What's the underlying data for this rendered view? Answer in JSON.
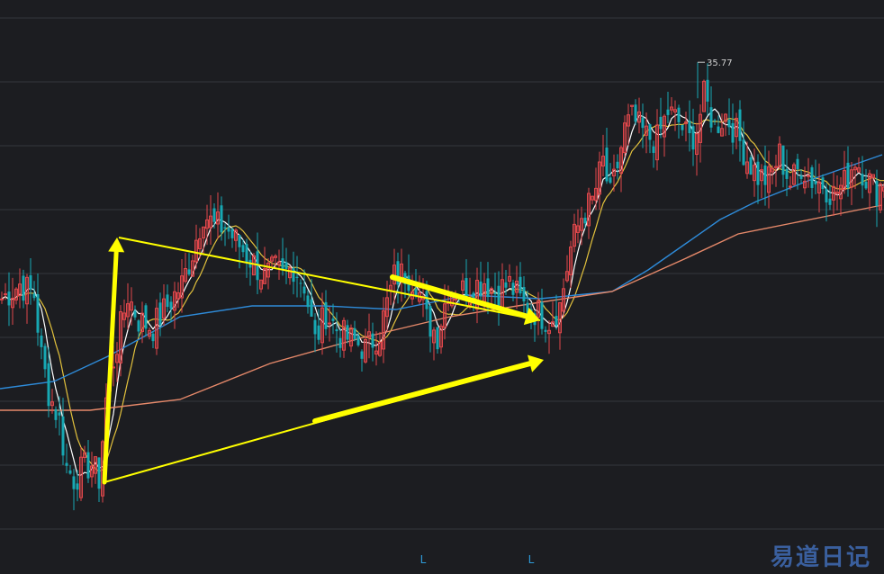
{
  "watermark": "易道日记",
  "chart_data": {
    "type": "candlestick",
    "ylim": [
      22,
      37
    ],
    "grid": true,
    "annotations": {
      "high_label": "35.77",
      "bottom_markers": [
        "L",
        "L"
      ]
    },
    "colors": {
      "up": "#e0474b",
      "down": "#17a8b3",
      "ma5": "#ffffff",
      "ma10": "#e3c23d",
      "ma60": "#2e8bd9",
      "ma120": "#e6896a",
      "pattern": "#ffff00",
      "grid": "#33363d"
    },
    "x": [
      0,
      4,
      8,
      12,
      16,
      20,
      24,
      28,
      32,
      36,
      40,
      44,
      48,
      52,
      56,
      60,
      64,
      68,
      72,
      76,
      80,
      84,
      88,
      92,
      96,
      100,
      104,
      108,
      112,
      116,
      120,
      124,
      128,
      132,
      136,
      140,
      144,
      148,
      152,
      156,
      160,
      164,
      168,
      172,
      176,
      180,
      184,
      188,
      192,
      196,
      200,
      204,
      208,
      212,
      216,
      220,
      224,
      228,
      232,
      236,
      240,
      244,
      248,
      252,
      256,
      260,
      264,
      268,
      272,
      276,
      280,
      284,
      288,
      292,
      296,
      300,
      304,
      308,
      312,
      316,
      320,
      324,
      328,
      332,
      336,
      340,
      344,
      348,
      352,
      356,
      360,
      364,
      368,
      372,
      376,
      380,
      384,
      388,
      392,
      396,
      400,
      404,
      408,
      412,
      416,
      420,
      424,
      428,
      432,
      436,
      440,
      444,
      448,
      452,
      456,
      460,
      464,
      468,
      472,
      476,
      480,
      484,
      488,
      492,
      496,
      500,
      504,
      508,
      512,
      516,
      520,
      524,
      528,
      532,
      536,
      540,
      544,
      548,
      552,
      556,
      560,
      564,
      568,
      572,
      576,
      580,
      584,
      588,
      592,
      596,
      600,
      604,
      608,
      612,
      616,
      620,
      624,
      628,
      632,
      636,
      640,
      644,
      648,
      652,
      656,
      660,
      664,
      668,
      672,
      676,
      680,
      684,
      688,
      692,
      696,
      700,
      704,
      708,
      712,
      716,
      720,
      724,
      728,
      732,
      736,
      740,
      744,
      748,
      752,
      756,
      760,
      764,
      768,
      772,
      776,
      780,
      784,
      788,
      792,
      796,
      800,
      804,
      808,
      812,
      816,
      820,
      824,
      828,
      832,
      836,
      840,
      844,
      848,
      852,
      856,
      860,
      864,
      868,
      872,
      876,
      880,
      884,
      888,
      892,
      896,
      900,
      904,
      908,
      912,
      916,
      920,
      924,
      928,
      932,
      936,
      940,
      944,
      948,
      952,
      956,
      960,
      964,
      968,
      972,
      976,
      980
    ],
    "anchors": [
      [
        0,
        29.2
      ],
      [
        20,
        29.6
      ],
      [
        36,
        29.3
      ],
      [
        44,
        27.6
      ],
      [
        52,
        26.6
      ],
      [
        64,
        25.8
      ],
      [
        72,
        24.5
      ],
      [
        80,
        24.2
      ],
      [
        92,
        24.5
      ],
      [
        100,
        24.6
      ],
      [
        108,
        24.2
      ],
      [
        116,
        26.4
      ],
      [
        124,
        27.5
      ],
      [
        140,
        29.3
      ],
      [
        152,
        28.6
      ],
      [
        168,
        28.4
      ],
      [
        184,
        29.0
      ],
      [
        200,
        29.6
      ],
      [
        212,
        30.5
      ],
      [
        224,
        31.6
      ],
      [
        236,
        31.2
      ],
      [
        248,
        31.2
      ],
      [
        260,
        30.8
      ],
      [
        276,
        30.3
      ],
      [
        292,
        29.8
      ],
      [
        304,
        30.0
      ],
      [
        312,
        29.8
      ],
      [
        324,
        30.1
      ],
      [
        336,
        29.6
      ],
      [
        348,
        28.0
      ],
      [
        360,
        28.8
      ],
      [
        376,
        28.2
      ],
      [
        392,
        28.0
      ],
      [
        404,
        27.8
      ],
      [
        420,
        28.3
      ],
      [
        436,
        29.8
      ],
      [
        448,
        29.9
      ],
      [
        460,
        29.7
      ],
      [
        472,
        28.6
      ],
      [
        484,
        28.2
      ],
      [
        496,
        29.5
      ],
      [
        508,
        29.4
      ],
      [
        520,
        29.5
      ],
      [
        536,
        29.7
      ],
      [
        548,
        29.4
      ],
      [
        564,
        29.6
      ],
      [
        580,
        29.0
      ],
      [
        596,
        28.8
      ],
      [
        608,
        28.6
      ],
      [
        620,
        29.0
      ],
      [
        632,
        30.6
      ],
      [
        644,
        31.5
      ],
      [
        656,
        31.9
      ],
      [
        668,
        33.0
      ],
      [
        676,
        32.0
      ],
      [
        684,
        32.9
      ],
      [
        692,
        33.9
      ],
      [
        700,
        34.2
      ],
      [
        716,
        33.7
      ],
      [
        728,
        33.6
      ],
      [
        740,
        34.4
      ],
      [
        752,
        34.1
      ],
      [
        764,
        33.6
      ],
      [
        772,
        33.9
      ],
      [
        780,
        34.8
      ],
      [
        792,
        34.0
      ],
      [
        804,
        34.3
      ],
      [
        816,
        33.8
      ],
      [
        828,
        33.1
      ],
      [
        840,
        32.6
      ],
      [
        852,
        32.5
      ],
      [
        864,
        33.2
      ],
      [
        876,
        32.4
      ],
      [
        888,
        32.9
      ],
      [
        900,
        32.5
      ],
      [
        912,
        32.4
      ],
      [
        924,
        32.1
      ],
      [
        936,
        32.4
      ],
      [
        948,
        33.1
      ],
      [
        960,
        32.6
      ],
      [
        972,
        32.2
      ],
      [
        980,
        32.5
      ]
    ],
    "ma60": [
      [
        0,
        26.7
      ],
      [
        60,
        26.9
      ],
      [
        120,
        27.6
      ],
      [
        200,
        28.7
      ],
      [
        280,
        29.0
      ],
      [
        360,
        29.0
      ],
      [
        440,
        28.9
      ],
      [
        520,
        29.3
      ],
      [
        600,
        29.2
      ],
      [
        680,
        29.4
      ],
      [
        720,
        30.0
      ],
      [
        760,
        30.7
      ],
      [
        800,
        31.4
      ],
      [
        840,
        31.9
      ],
      [
        900,
        32.5
      ],
      [
        980,
        33.2
      ]
    ],
    "ma120": [
      [
        0,
        26.1
      ],
      [
        100,
        26.1
      ],
      [
        200,
        26.4
      ],
      [
        300,
        27.4
      ],
      [
        400,
        28.1
      ],
      [
        500,
        28.7
      ],
      [
        600,
        29.1
      ],
      [
        680,
        29.4
      ],
      [
        760,
        30.3
      ],
      [
        820,
        31.0
      ],
      [
        880,
        31.3
      ],
      [
        940,
        31.6
      ],
      [
        980,
        31.8
      ]
    ],
    "high_marker": {
      "x": 775,
      "value": 35.77
    },
    "pattern_lines": [
      {
        "from": [
          132,
          30.9
        ],
        "to": [
          600,
          28.6
        ],
        "width": 2
      },
      {
        "from": [
          116,
          24.1
        ],
        "to": [
          600,
          27.5
        ],
        "width": 2
      },
      {
        "from": [
          116,
          24.1
        ],
        "to": [
          130,
          30.9
        ],
        "width": 5,
        "arrow": true
      },
      {
        "from": [
          436,
          29.8
        ],
        "to": [
          600,
          28.6
        ],
        "width": 6,
        "arrow": true
      },
      {
        "from": [
          350,
          25.8
        ],
        "to": [
          604,
          27.5
        ],
        "width": 6,
        "arrow": true
      }
    ],
    "l_marker_x": [
      470,
      590
    ]
  }
}
